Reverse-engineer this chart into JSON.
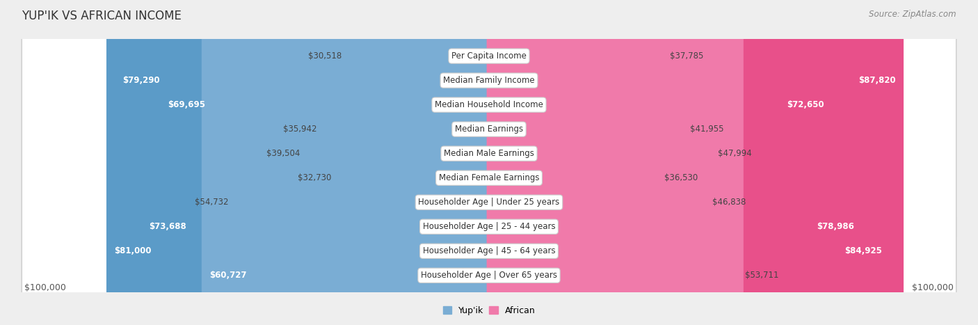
{
  "title": "YUP'IK VS AFRICAN INCOME",
  "source": "Source: ZipAtlas.com",
  "categories": [
    "Per Capita Income",
    "Median Family Income",
    "Median Household Income",
    "Median Earnings",
    "Median Male Earnings",
    "Median Female Earnings",
    "Householder Age | Under 25 years",
    "Householder Age | 25 - 44 years",
    "Householder Age | 45 - 64 years",
    "Householder Age | Over 65 years"
  ],
  "yupik_values": [
    30518,
    79290,
    69695,
    35942,
    39504,
    32730,
    54732,
    73688,
    81000,
    60727
  ],
  "african_values": [
    37785,
    87820,
    72650,
    41955,
    47994,
    36530,
    46838,
    78986,
    84925,
    53711
  ],
  "yupik_labels": [
    "$30,518",
    "$79,290",
    "$69,695",
    "$35,942",
    "$39,504",
    "$32,730",
    "$54,732",
    "$73,688",
    "$81,000",
    "$60,727"
  ],
  "african_labels": [
    "$37,785",
    "$87,820",
    "$72,650",
    "$41,955",
    "$47,994",
    "$36,530",
    "$46,838",
    "$78,986",
    "$84,925",
    "$53,711"
  ],
  "max_value": 100000,
  "yupik_color_light": "#b8d0e8",
  "yupik_color_mid": "#7aadd4",
  "yupik_color_dark": "#5b9bc8",
  "african_color_light": "#f4b8cc",
  "african_color_mid": "#f07aaa",
  "african_color_dark": "#e8508a",
  "background_color": "#eeeeee",
  "row_bg": "#f5f5f5",
  "xlabel_left": "$100,000",
  "xlabel_right": "$100,000",
  "legend_yupik": "Yup'ik",
  "legend_african": "African",
  "title_fontsize": 12,
  "source_fontsize": 8.5,
  "label_fontsize": 8.5,
  "category_fontsize": 8.5,
  "inside_label_threshold": 55000,
  "inside_label_threshold_african": 60000
}
